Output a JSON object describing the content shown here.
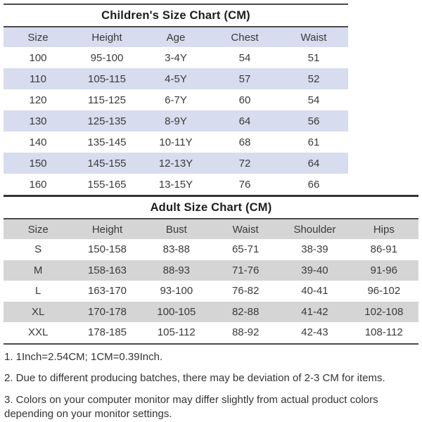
{
  "chart_data": [
    {
      "type": "table",
      "title": "Children's Size Chart (CM)",
      "unit": "CM",
      "columns": [
        "Size",
        "Height",
        "Age",
        "Chest",
        "Waist"
      ],
      "rows": [
        [
          "100",
          "95-100",
          "3-4Y",
          "54",
          "51"
        ],
        [
          "110",
          "105-115",
          "4-5Y",
          "57",
          "52"
        ],
        [
          "120",
          "115-125",
          "6-7Y",
          "60",
          "54"
        ],
        [
          "130",
          "125-135",
          "8-9Y",
          "64",
          "56"
        ],
        [
          "140",
          "135-145",
          "10-11Y",
          "68",
          "61"
        ],
        [
          "150",
          "145-155",
          "12-13Y",
          "72",
          "64"
        ],
        [
          "160",
          "155-165",
          "13-15Y",
          "76",
          "66"
        ]
      ],
      "stripe_color": "#d7dcee",
      "layout": "zebra-striped table, header and even rows shaded, all cells centered"
    },
    {
      "type": "table",
      "title": "Adult Size Chart (CM)",
      "unit": "CM",
      "columns": [
        "Size",
        "Height",
        "Bust",
        "Waist",
        "Shoulder",
        "Hips"
      ],
      "rows": [
        [
          "S",
          "150-158",
          "83-88",
          "65-71",
          "38-39",
          "86-91"
        ],
        [
          "M",
          "158-163",
          "88-93",
          "71-76",
          "39-40",
          "91-96"
        ],
        [
          "L",
          "163-170",
          "93-100",
          "76-82",
          "40-41",
          "96-102"
        ],
        [
          "XL",
          "170-178",
          "100-105",
          "82-88",
          "41-42",
          "102-108"
        ],
        [
          "XXL",
          "178-185",
          "105-112",
          "88-92",
          "42-43",
          "108-112"
        ]
      ],
      "stripe_color": "#d5d5d5",
      "layout": "zebra-striped table, header and even rows shaded, all cells centered"
    }
  ],
  "notes": [
    "1. 1Inch=2.54CM; 1CM=0.39Inch.",
    "2. Due to different producing batches, there may be deviation of 2-3 CM for items.",
    "3. Colors on your computer monitor may differ slightly from actual product colors depending on your monitor settings."
  ],
  "colors": {
    "children_stripe": "#d7dcee",
    "adult_stripe": "#d5d5d5",
    "rule": "#4a4a4a",
    "text": "#3a3a3a"
  }
}
